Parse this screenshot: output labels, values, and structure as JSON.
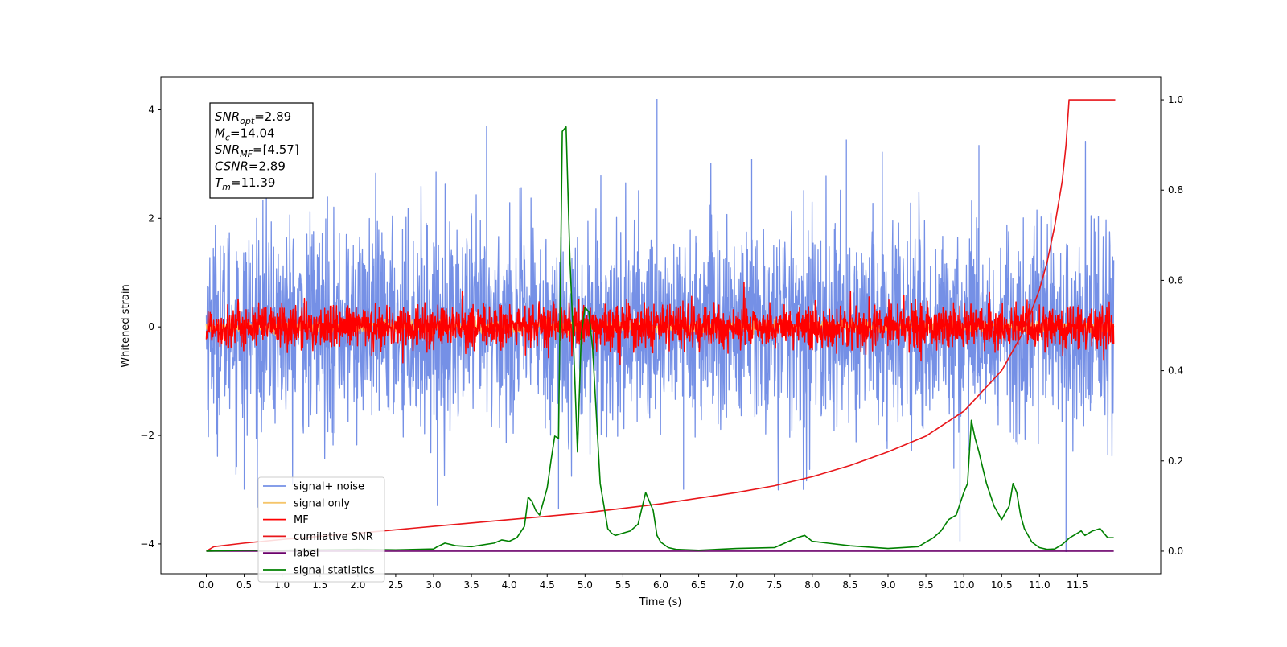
{
  "chart_data": {
    "type": "line",
    "xlabel": "Time (s)",
    "ylabel": "Whitened strain",
    "xlim": [
      -0.6,
      12.6
    ],
    "ylim": [
      -4.55,
      4.6
    ],
    "y2lim": [
      -0.05,
      1.05
    ],
    "xticks": [
      0.0,
      0.5,
      1.0,
      1.5,
      2.0,
      2.5,
      3.0,
      3.5,
      4.0,
      4.5,
      5.0,
      5.5,
      6.0,
      6.5,
      7.0,
      7.5,
      8.0,
      8.5,
      9.0,
      9.5,
      10.0,
      10.5,
      11.0,
      11.5
    ],
    "xtick_labels": [
      "0.0",
      "0.5",
      "1.0",
      "1.5",
      "2.0",
      "2.5",
      "3.0",
      "3.5",
      "4.0",
      "4.5",
      "5.0",
      "5.5",
      "6.0",
      "6.5",
      "7.0",
      "7.5",
      "8.0",
      "8.5",
      "9.0",
      "9.5",
      "10.0",
      "10.5",
      "11.0",
      "11.5"
    ],
    "yticks": [
      -4,
      -2,
      0,
      2,
      4
    ],
    "ytick_labels": [
      "−4",
      "−2",
      "0",
      "2",
      "4"
    ],
    "y2ticks": [
      0.0,
      0.2,
      0.4,
      0.6,
      0.8,
      1.0
    ],
    "y2tick_labels": [
      "0.0",
      "0.2",
      "0.4",
      "0.6",
      "0.8",
      "1.0"
    ],
    "grid": false,
    "legend_position": "lower-left",
    "annotation": {
      "lines": [
        {
          "name": "SNR",
          "sub": "opt",
          "value": "=2.89"
        },
        {
          "name": "M",
          "sub": "c",
          "value": "=14.04"
        },
        {
          "name": "SNR",
          "sub": "MF",
          "value": "=[4.57]"
        },
        {
          "name": "CSNR",
          "sub": "",
          "value": "=2.89"
        },
        {
          "name": "T",
          "sub": "m",
          "value": "=11.39"
        }
      ]
    },
    "series": [
      {
        "name": "signal+ noise",
        "color": "#7590e6",
        "axis": "left",
        "kind": "noise",
        "x_start": 0.0,
        "x_end": 11.98,
        "spread": 0.95,
        "max_abs": 4.1
      },
      {
        "name": "signal only",
        "color": "#f5c56b",
        "axis": "left",
        "kind": "noise",
        "x_start": 0.0,
        "x_end": 11.98,
        "spread": 0.05,
        "max_abs": 0.5
      },
      {
        "name": "MF",
        "color": "#ff0000",
        "axis": "left",
        "kind": "noise",
        "x_start": 0.0,
        "x_end": 11.98,
        "spread": 0.2,
        "max_abs": 1.0
      },
      {
        "name": "cumilative SNR",
        "color": "#e8161a",
        "axis": "right",
        "kind": "line",
        "x": [
          0.0,
          0.1,
          0.5,
          1.0,
          2.0,
          3.0,
          4.0,
          5.0,
          6.0,
          7.0,
          7.5,
          8.0,
          8.5,
          9.0,
          9.5,
          10.0,
          10.5,
          10.8,
          11.0,
          11.1,
          11.2,
          11.3,
          11.35,
          11.39,
          12.0
        ],
        "values": [
          0.0,
          0.01,
          0.018,
          0.026,
          0.04,
          0.055,
          0.07,
          0.085,
          0.105,
          0.13,
          0.145,
          0.165,
          0.19,
          0.22,
          0.255,
          0.31,
          0.4,
          0.49,
          0.58,
          0.64,
          0.72,
          0.82,
          0.9,
          1.0,
          1.0
        ]
      },
      {
        "name": "label",
        "color": "#6b006b",
        "axis": "right",
        "kind": "line",
        "x": [
          0.0,
          11.98
        ],
        "values": [
          0.0,
          0.0
        ]
      },
      {
        "name": "signal statistics",
        "color": "#008000",
        "axis": "right",
        "kind": "line",
        "x": [
          0.0,
          0.5,
          1.0,
          1.5,
          2.0,
          2.5,
          3.0,
          3.05,
          3.15,
          3.3,
          3.5,
          3.8,
          3.9,
          4.0,
          4.1,
          4.2,
          4.25,
          4.3,
          4.35,
          4.4,
          4.5,
          4.55,
          4.6,
          4.65,
          4.7,
          4.75,
          4.8,
          4.85,
          4.9,
          4.95,
          5.0,
          5.05,
          5.1,
          5.15,
          5.2,
          5.25,
          5.3,
          5.35,
          5.4,
          5.5,
          5.6,
          5.7,
          5.8,
          5.9,
          5.95,
          6.0,
          6.1,
          6.2,
          6.5,
          7.0,
          7.5,
          7.8,
          7.9,
          8.0,
          8.2,
          8.5,
          9.0,
          9.4,
          9.5,
          9.6,
          9.7,
          9.8,
          9.9,
          10.0,
          10.05,
          10.1,
          10.15,
          10.2,
          10.3,
          10.4,
          10.5,
          10.6,
          10.65,
          10.7,
          10.75,
          10.8,
          10.9,
          11.0,
          11.1,
          11.2,
          11.3,
          11.4,
          11.5,
          11.55,
          11.6,
          11.7,
          11.8,
          11.9,
          11.98
        ],
        "values": [
          0.0,
          0.002,
          0.002,
          0.003,
          0.004,
          0.003,
          0.005,
          0.01,
          0.018,
          0.012,
          0.01,
          0.018,
          0.025,
          0.022,
          0.03,
          0.055,
          0.12,
          0.11,
          0.09,
          0.08,
          0.14,
          0.2,
          0.255,
          0.25,
          0.93,
          0.94,
          0.65,
          0.45,
          0.22,
          0.48,
          0.54,
          0.53,
          0.45,
          0.3,
          0.15,
          0.1,
          0.05,
          0.04,
          0.035,
          0.04,
          0.045,
          0.06,
          0.13,
          0.09,
          0.035,
          0.02,
          0.008,
          0.004,
          0.002,
          0.006,
          0.008,
          0.03,
          0.035,
          0.022,
          0.018,
          0.012,
          0.006,
          0.01,
          0.02,
          0.03,
          0.045,
          0.07,
          0.08,
          0.13,
          0.15,
          0.29,
          0.25,
          0.22,
          0.15,
          0.1,
          0.07,
          0.1,
          0.15,
          0.13,
          0.08,
          0.05,
          0.02,
          0.008,
          0.004,
          0.005,
          0.015,
          0.03,
          0.04,
          0.045,
          0.035,
          0.045,
          0.05,
          0.03,
          0.03
        ]
      }
    ],
    "spikes": {
      "x": [
        0.5,
        1.6,
        3.05,
        3.7,
        4.65,
        5.95,
        6.3,
        7.2,
        8.45,
        9.95,
        10.2,
        11.35
      ],
      "values": [
        -3.0,
        2.4,
        -3.3,
        3.7,
        -3.35,
        4.2,
        -3.0,
        3.1,
        3.45,
        -3.95,
        3.35,
        -4.15
      ]
    }
  }
}
